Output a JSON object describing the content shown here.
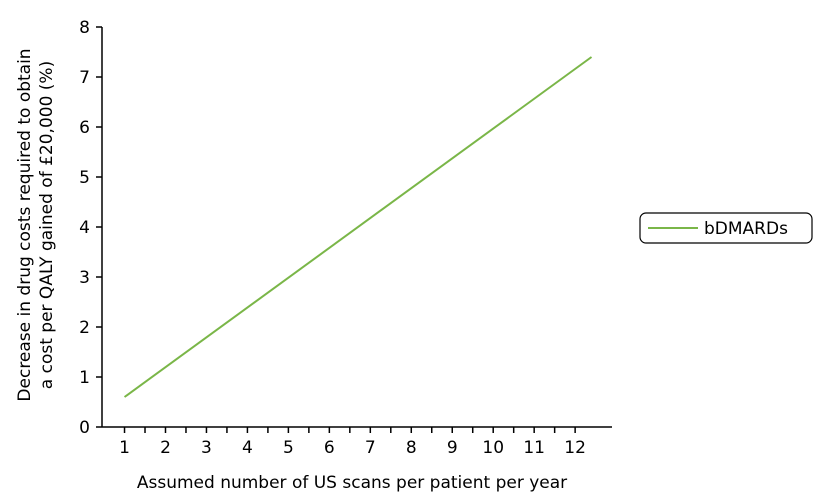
{
  "chart_data": {
    "type": "line",
    "xlabel": "Assumed number of US scans per patient per year",
    "ylabel_lines": [
      "Decrease in drug costs required to obtain",
      "a cost per QALY gained of £20,000 (%)"
    ],
    "x_ticks": [
      1,
      2,
      3,
      4,
      5,
      6,
      7,
      8,
      9,
      10,
      11,
      12
    ],
    "y_ticks": [
      0,
      1,
      2,
      3,
      4,
      5,
      6,
      7,
      8
    ],
    "xlim": [
      0.45,
      12.9
    ],
    "ylim": [
      0,
      8
    ],
    "grid": false,
    "legend_position": "right",
    "series": [
      {
        "name": "bDMARDs",
        "color": "#7ab648",
        "x": [
          1,
          12.4
        ],
        "y": [
          0.6,
          7.4
        ]
      }
    ]
  }
}
